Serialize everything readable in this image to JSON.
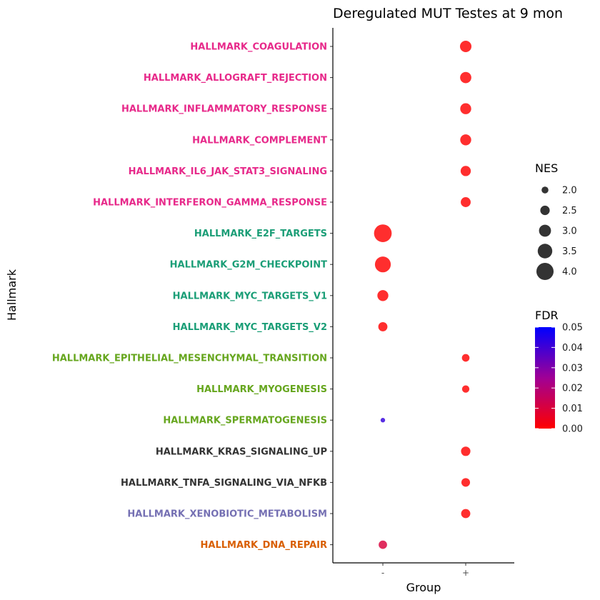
{
  "chart_data": {
    "type": "scatter",
    "title": "Deregulated MUT Testes at 9 mon",
    "xlabel": "Group",
    "ylabel": "Hallmark",
    "x_categories": [
      "-",
      "+"
    ],
    "categories": [
      {
        "label": "HALLMARK_COAGULATION",
        "color": "#E7298A"
      },
      {
        "label": "HALLMARK_ALLOGRAFT_REJECTION",
        "color": "#E7298A"
      },
      {
        "label": "HALLMARK_INFLAMMATORY_RESPONSE",
        "color": "#E7298A"
      },
      {
        "label": "HALLMARK_COMPLEMENT",
        "color": "#E7298A"
      },
      {
        "label": "HALLMARK_IL6_JAK_STAT3_SIGNALING",
        "color": "#E7298A"
      },
      {
        "label": "HALLMARK_INTERFERON_GAMMA_RESPONSE",
        "color": "#E7298A"
      },
      {
        "label": "HALLMARK_E2F_TARGETS",
        "color": "#1B9E77"
      },
      {
        "label": "HALLMARK_G2M_CHECKPOINT",
        "color": "#1B9E77"
      },
      {
        "label": "HALLMARK_MYC_TARGETS_V1",
        "color": "#1B9E77"
      },
      {
        "label": "HALLMARK_MYC_TARGETS_V2",
        "color": "#1B9E77"
      },
      {
        "label": "HALLMARK_EPITHELIAL_MESENCHYMAL_TRANSITION",
        "color": "#66A61E"
      },
      {
        "label": "HALLMARK_MYOGENESIS",
        "color": "#66A61E"
      },
      {
        "label": "HALLMARK_SPERMATOGENESIS",
        "color": "#66A61E"
      },
      {
        "label": "HALLMARK_KRAS_SIGNALING_UP",
        "color": "#333333"
      },
      {
        "label": "HALLMARK_TNFA_SIGNALING_VIA_NFKB",
        "color": "#333333"
      },
      {
        "label": "HALLMARK_XENOBIOTIC_METABOLISM",
        "color": "#7570B3"
      },
      {
        "label": "HALLMARK_DNA_REPAIR",
        "color": "#D95F02"
      }
    ],
    "points": [
      {
        "hallmark": "HALLMARK_COAGULATION",
        "group": "+",
        "nes": 2.9,
        "fdr": 0.0
      },
      {
        "hallmark": "HALLMARK_ALLOGRAFT_REJECTION",
        "group": "+",
        "nes": 2.85,
        "fdr": 0.0
      },
      {
        "hallmark": "HALLMARK_INFLAMMATORY_RESPONSE",
        "group": "+",
        "nes": 2.8,
        "fdr": 0.0
      },
      {
        "hallmark": "HALLMARK_COMPLEMENT",
        "group": "+",
        "nes": 2.8,
        "fdr": 0.0
      },
      {
        "hallmark": "HALLMARK_IL6_JAK_STAT3_SIGNALING",
        "group": "+",
        "nes": 2.65,
        "fdr": 0.0
      },
      {
        "hallmark": "HALLMARK_INTERFERON_GAMMA_RESPONSE",
        "group": "+",
        "nes": 2.6,
        "fdr": 0.0
      },
      {
        "hallmark": "HALLMARK_E2F_TARGETS",
        "group": "-",
        "nes": 4.1,
        "fdr": 0.0
      },
      {
        "hallmark": "HALLMARK_G2M_CHECKPOINT",
        "group": "-",
        "nes": 3.75,
        "fdr": 0.0
      },
      {
        "hallmark": "HALLMARK_MYC_TARGETS_V1",
        "group": "-",
        "nes": 2.8,
        "fdr": 0.0
      },
      {
        "hallmark": "HALLMARK_MYC_TARGETS_V2",
        "group": "-",
        "nes": 2.45,
        "fdr": 0.0
      },
      {
        "hallmark": "HALLMARK_EPITHELIAL_MESENCHYMAL_TRANSITION",
        "group": "+",
        "nes": 2.15,
        "fdr": 0.0
      },
      {
        "hallmark": "HALLMARK_MYOGENESIS",
        "group": "+",
        "nes": 2.1,
        "fdr": 0.0
      },
      {
        "hallmark": "HALLMARK_SPERMATOGENESIS",
        "group": "-",
        "nes": 1.55,
        "fdr": 0.042
      },
      {
        "hallmark": "HALLMARK_KRAS_SIGNALING_UP",
        "group": "+",
        "nes": 2.5,
        "fdr": 0.0
      },
      {
        "hallmark": "HALLMARK_TNFA_SIGNALING_VIA_NFKB",
        "group": "+",
        "nes": 2.35,
        "fdr": 0.0
      },
      {
        "hallmark": "HALLMARK_XENOBIOTIC_METABOLISM",
        "group": "+",
        "nes": 2.45,
        "fdr": 0.0
      },
      {
        "hallmark": "HALLMARK_DNA_REPAIR",
        "group": "-",
        "nes": 2.3,
        "fdr": 0.01
      }
    ],
    "legend_size": {
      "title": "NES",
      "values": [
        2.0,
        2.5,
        3.0,
        3.5,
        4.0
      ],
      "labels": [
        "2.0",
        "2.5",
        "3.0",
        "3.5",
        "4.0"
      ]
    },
    "legend_color": {
      "title": "FDR",
      "range": [
        0.0,
        0.05
      ],
      "ticks": [
        "0.00",
        "0.01",
        "0.02",
        "0.03",
        "0.04",
        "0.05"
      ],
      "low_color": "#FF0000",
      "high_color": "#0000FF"
    },
    "legend_placement": "right",
    "grid": false
  }
}
